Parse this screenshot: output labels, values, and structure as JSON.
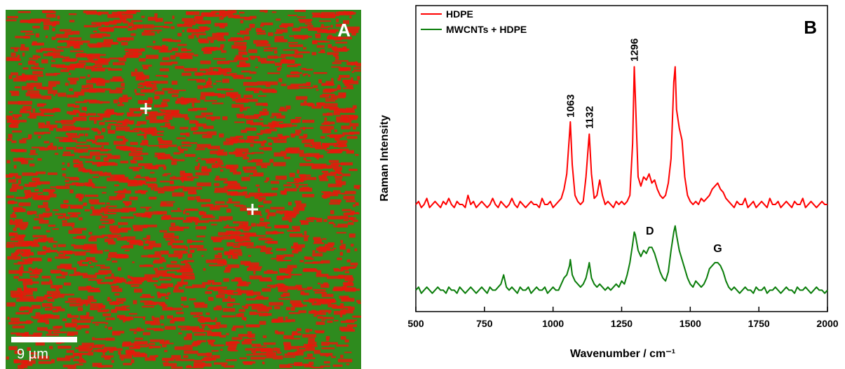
{
  "panel_a": {
    "label": "A",
    "scale_bar": "9 µm"
  },
  "chart_data": {
    "type": "line",
    "panel_label": "B",
    "xlabel": "Wavenumber / cm⁻¹",
    "ylabel": "Raman Intensity",
    "xlim": [
      500,
      2000
    ],
    "xticks": [
      500,
      750,
      1000,
      1250,
      1500,
      1750,
      2000
    ],
    "ylim": [
      0,
      100
    ],
    "legend": "upper left",
    "annotations": [
      "1063",
      "1132",
      "1296",
      "D",
      "G"
    ],
    "x": [
      500,
      510,
      520,
      530,
      540,
      550,
      560,
      570,
      580,
      590,
      600,
      610,
      620,
      630,
      640,
      650,
      660,
      670,
      680,
      690,
      700,
      710,
      720,
      730,
      740,
      750,
      760,
      770,
      780,
      790,
      800,
      810,
      820,
      830,
      840,
      850,
      860,
      870,
      880,
      890,
      900,
      910,
      920,
      930,
      940,
      950,
      960,
      970,
      980,
      990,
      1000,
      1010,
      1020,
      1030,
      1040,
      1050,
      1060,
      1063,
      1070,
      1080,
      1090,
      1100,
      1110,
      1120,
      1130,
      1132,
      1140,
      1150,
      1160,
      1170,
      1180,
      1190,
      1200,
      1210,
      1220,
      1230,
      1240,
      1250,
      1260,
      1270,
      1280,
      1290,
      1296,
      1300,
      1310,
      1320,
      1330,
      1340,
      1350,
      1360,
      1370,
      1380,
      1390,
      1400,
      1410,
      1420,
      1430,
      1440,
      1445,
      1450,
      1460,
      1470,
      1480,
      1490,
      1500,
      1510,
      1520,
      1530,
      1540,
      1550,
      1560,
      1570,
      1580,
      1590,
      1600,
      1610,
      1620,
      1630,
      1640,
      1650,
      1660,
      1670,
      1680,
      1690,
      1700,
      1710,
      1720,
      1730,
      1740,
      1750,
      1760,
      1770,
      1780,
      1790,
      1800,
      1810,
      1820,
      1830,
      1840,
      1850,
      1860,
      1870,
      1880,
      1890,
      1900,
      1910,
      1920,
      1930,
      1940,
      1950,
      1960,
      1970,
      1980,
      1990,
      2000
    ],
    "series": [
      {
        "name": "HDPE",
        "color": "#ff0000",
        "values": [
          35,
          36,
          34,
          35,
          37,
          34,
          35,
          36,
          35,
          34,
          36,
          35,
          37,
          35,
          34,
          36,
          35,
          35,
          34,
          38,
          35,
          36,
          34,
          35,
          36,
          35,
          34,
          35,
          37,
          35,
          34,
          36,
          35,
          34,
          35,
          37,
          35,
          34,
          36,
          35,
          34,
          35,
          36,
          35,
          35,
          34,
          37,
          35,
          35,
          36,
          34,
          35,
          36,
          37,
          40,
          45,
          58,
          62,
          48,
          38,
          36,
          35,
          36,
          44,
          56,
          58,
          45,
          37,
          38,
          43,
          38,
          35,
          36,
          35,
          34,
          36,
          35,
          36,
          35,
          36,
          38,
          55,
          80,
          70,
          44,
          41,
          44,
          43,
          45,
          42,
          43,
          40,
          38,
          37,
          38,
          42,
          50,
          75,
          80,
          66,
          60,
          56,
          44,
          38,
          36,
          35,
          36,
          35,
          37,
          36,
          37,
          38,
          40,
          41,
          42,
          40,
          39,
          37,
          36,
          35,
          34,
          36,
          35,
          35,
          37,
          34,
          35,
          36,
          34,
          35,
          36,
          35,
          34,
          37,
          35,
          35,
          36,
          34,
          35,
          36,
          35,
          34,
          36,
          35,
          35,
          37,
          34,
          35,
          36,
          35,
          34,
          35,
          36,
          35,
          35
        ]
      },
      {
        "name": "MWCNTs + HDPE",
        "color": "#0a7d0a",
        "values": [
          7,
          8,
          6,
          7,
          8,
          7,
          6,
          7,
          8,
          7,
          7,
          6,
          8,
          7,
          7,
          6,
          8,
          7,
          6,
          7,
          8,
          7,
          6,
          7,
          8,
          7,
          6,
          8,
          7,
          7,
          8,
          9,
          12,
          8,
          7,
          8,
          7,
          6,
          8,
          7,
          7,
          8,
          6,
          7,
          8,
          7,
          7,
          8,
          6,
          7,
          8,
          7,
          7,
          9,
          11,
          12,
          15,
          17,
          12,
          10,
          9,
          8,
          9,
          11,
          15,
          16,
          11,
          9,
          8,
          9,
          8,
          7,
          8,
          7,
          8,
          9,
          8,
          10,
          9,
          12,
          16,
          22,
          26,
          25,
          20,
          18,
          20,
          19,
          21,
          21,
          19,
          16,
          13,
          11,
          10,
          13,
          20,
          26,
          28,
          25,
          20,
          17,
          14,
          11,
          9,
          8,
          10,
          9,
          8,
          9,
          11,
          14,
          15,
          16,
          16,
          15,
          13,
          10,
          8,
          7,
          8,
          7,
          6,
          7,
          8,
          7,
          7,
          6,
          8,
          7,
          7,
          8,
          6,
          7,
          7,
          8,
          7,
          6,
          7,
          8,
          7,
          7,
          6,
          8,
          7,
          7,
          8,
          7,
          6,
          7,
          8,
          7,
          7,
          6,
          7
        ]
      }
    ]
  }
}
